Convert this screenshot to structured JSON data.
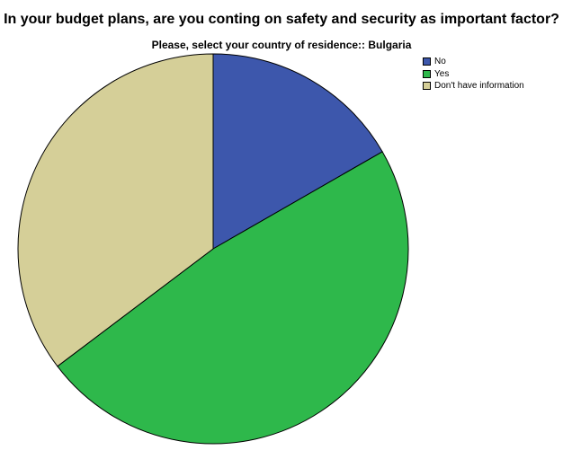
{
  "chart_data": {
    "type": "pie",
    "title": "In your budget plans, are you conting on safety and security as important factor?",
    "subtitle": "Please, select your country of residence:: Bulgaria",
    "legend_position": "top-right",
    "slices": [
      {
        "label": "No",
        "value": 16.7,
        "color": "#3d57ac"
      },
      {
        "label": "Yes",
        "value": 48.0,
        "color": "#2eb84b"
      },
      {
        "label": "Don't have information",
        "value": 35.3,
        "color": "#d5cf98"
      }
    ]
  }
}
